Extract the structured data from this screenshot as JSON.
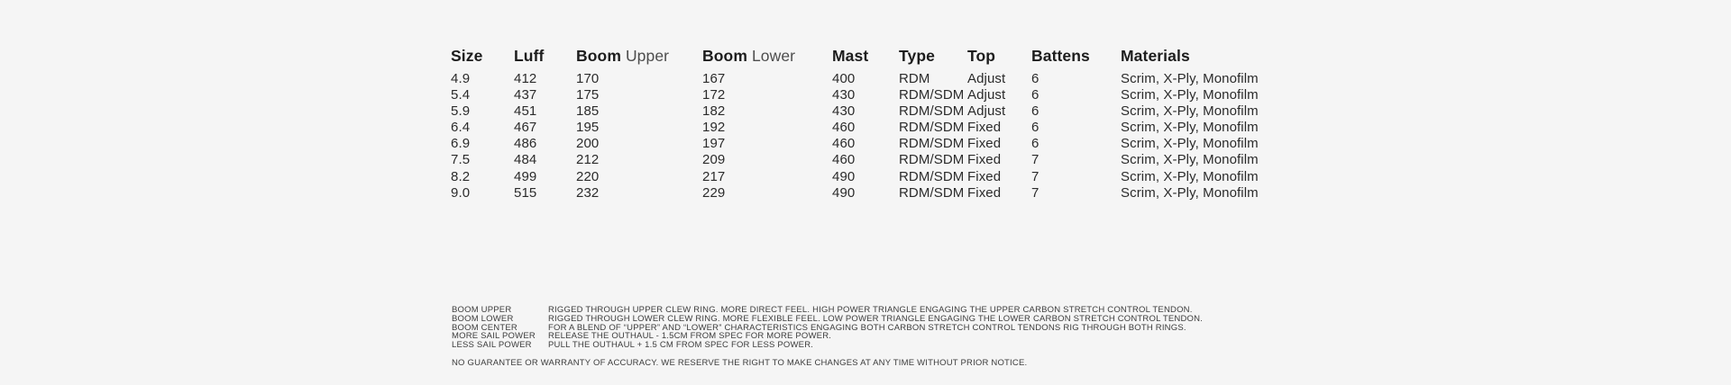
{
  "colors": {
    "background": "#f5f5f5",
    "header_bold": "#1d1d1d",
    "header_light": "#4d4d4d",
    "data_text": "#2b2b2b",
    "footnote_text": "#3c3c3c"
  },
  "table": {
    "headers": [
      {
        "bold": "Size",
        "light": ""
      },
      {
        "bold": "Luff",
        "light": ""
      },
      {
        "bold": "Boom",
        "light": " Upper"
      },
      {
        "bold": "Boom",
        "light": " Lower"
      },
      {
        "bold": "Mast",
        "light": ""
      },
      {
        "bold": "Type",
        "light": ""
      },
      {
        "bold": "Top",
        "light": ""
      },
      {
        "bold": "Battens",
        "light": ""
      },
      {
        "bold": "Materials",
        "light": ""
      }
    ],
    "rows": [
      [
        "4.9",
        "412",
        "170",
        "167",
        "400",
        "RDM",
        "Adjust",
        "6",
        "Scrim, X-Ply, Monofilm"
      ],
      [
        "5.4",
        "437",
        "175",
        "172",
        "430",
        "RDM/SDM",
        "Adjust",
        "6",
        "Scrim, X-Ply, Monofilm"
      ],
      [
        "5.9",
        "451",
        "185",
        "182",
        "430",
        "RDM/SDM",
        "Adjust",
        "6",
        "Scrim, X-Ply, Monofilm"
      ],
      [
        "6.4",
        "467",
        "195",
        "192",
        "460",
        "RDM/SDM",
        "Fixed",
        "6",
        "Scrim, X-Ply, Monofilm"
      ],
      [
        "6.9",
        "486",
        "200",
        "197",
        "460",
        "RDM/SDM",
        "Fixed",
        "6",
        "Scrim, X-Ply, Monofilm"
      ],
      [
        "7.5",
        "484",
        "212",
        "209",
        "460",
        "RDM/SDM",
        "Fixed",
        "7",
        "Scrim, X-Ply, Monofilm"
      ],
      [
        "8.2",
        "499",
        "220",
        "217",
        "490",
        "RDM/SDM",
        "Fixed",
        "7",
        "Scrim, X-Ply, Monofilm"
      ],
      [
        "9.0",
        "515",
        "232",
        "229",
        "490",
        "RDM/SDM",
        "Fixed",
        "7",
        "Scrim, X-Ply, Monofilm"
      ]
    ]
  },
  "footnotes": {
    "items": [
      {
        "label": "BOOM UPPER",
        "text": "RIGGED THROUGH UPPER CLEW RING. MORE DIRECT FEEL. HIGH POWER TRIANGLE ENGAGING THE UPPER CARBON STRETCH CONTROL TENDON."
      },
      {
        "label": "BOOM LOWER",
        "text": "RIGGED THROUGH LOWER CLEW RING. MORE FLEXIBLE FEEL. LOW POWER TRIANGLE ENGAGING THE LOWER CARBON STRETCH CONTROL TENDON."
      },
      {
        "label": "BOOM CENTER",
        "text": "FOR A BLEND OF “UPPER” AND “LOWER” CHARACTERISTICS ENGAGING BOTH CARBON STRETCH CONTROL TENDONS RIG THROUGH BOTH RINGS."
      },
      {
        "label": "MORE SAIL POWER",
        "text": "RELEASE THE OUTHAUL - 1.5CM FROM SPEC FOR MORE POWER."
      },
      {
        "label": "LESS SAIL POWER",
        "text": "PULL THE OUTHAUL + 1.5 CM FROM SPEC FOR LESS POWER."
      }
    ],
    "disclaimer": "NO GUARANTEE OR WARRANTY OF ACCURACY. WE RESERVE THE RIGHT TO MAKE CHANGES AT ANY TIME WITHOUT PRIOR NOTICE."
  }
}
